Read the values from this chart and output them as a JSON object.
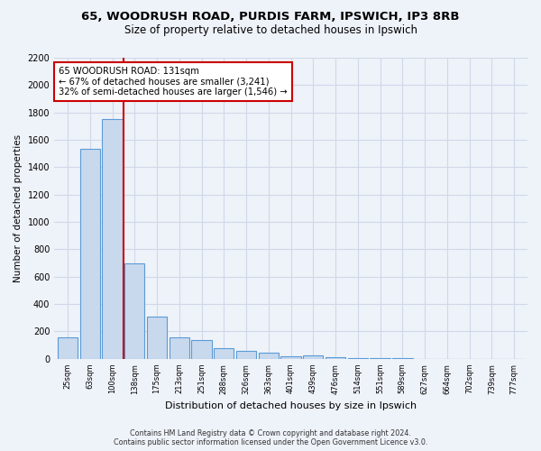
{
  "title1": "65, WOODRUSH ROAD, PURDIS FARM, IPSWICH, IP3 8RB",
  "title2": "Size of property relative to detached houses in Ipswich",
  "xlabel": "Distribution of detached houses by size in Ipswich",
  "ylabel": "Number of detached properties",
  "categories": [
    "25sqm",
    "63sqm",
    "100sqm",
    "138sqm",
    "175sqm",
    "213sqm",
    "251sqm",
    "288sqm",
    "326sqm",
    "363sqm",
    "401sqm",
    "439sqm",
    "476sqm",
    "514sqm",
    "551sqm",
    "589sqm",
    "627sqm",
    "664sqm",
    "702sqm",
    "739sqm",
    "777sqm"
  ],
  "values": [
    155,
    1535,
    1750,
    695,
    310,
    155,
    140,
    80,
    55,
    45,
    20,
    25,
    15,
    5,
    5,
    3,
    2,
    1,
    1,
    1,
    1
  ],
  "bar_color": "#c8d9ee",
  "bar_edge_color": "#5b9bd5",
  "red_line_x": 2.5,
  "annotation_line1": "65 WOODRUSH ROAD: 131sqm",
  "annotation_line2": "← 67% of detached houses are smaller (3,241)",
  "annotation_line3": "32% of semi-detached houses are larger (1,546) →",
  "annotation_box_color": "white",
  "annotation_box_edge_color": "#cc0000",
  "ylim": [
    0,
    2200
  ],
  "yticks": [
    0,
    200,
    400,
    600,
    800,
    1000,
    1200,
    1400,
    1600,
    1800,
    2000,
    2200
  ],
  "footer1": "Contains HM Land Registry data © Crown copyright and database right 2024.",
  "footer2": "Contains public sector information licensed under the Open Government Licence v3.0.",
  "bg_color": "#eef2f9",
  "grid_color": "#d0d8e8",
  "title_fontsize": 9.5,
  "subtitle_fontsize": 8.5
}
